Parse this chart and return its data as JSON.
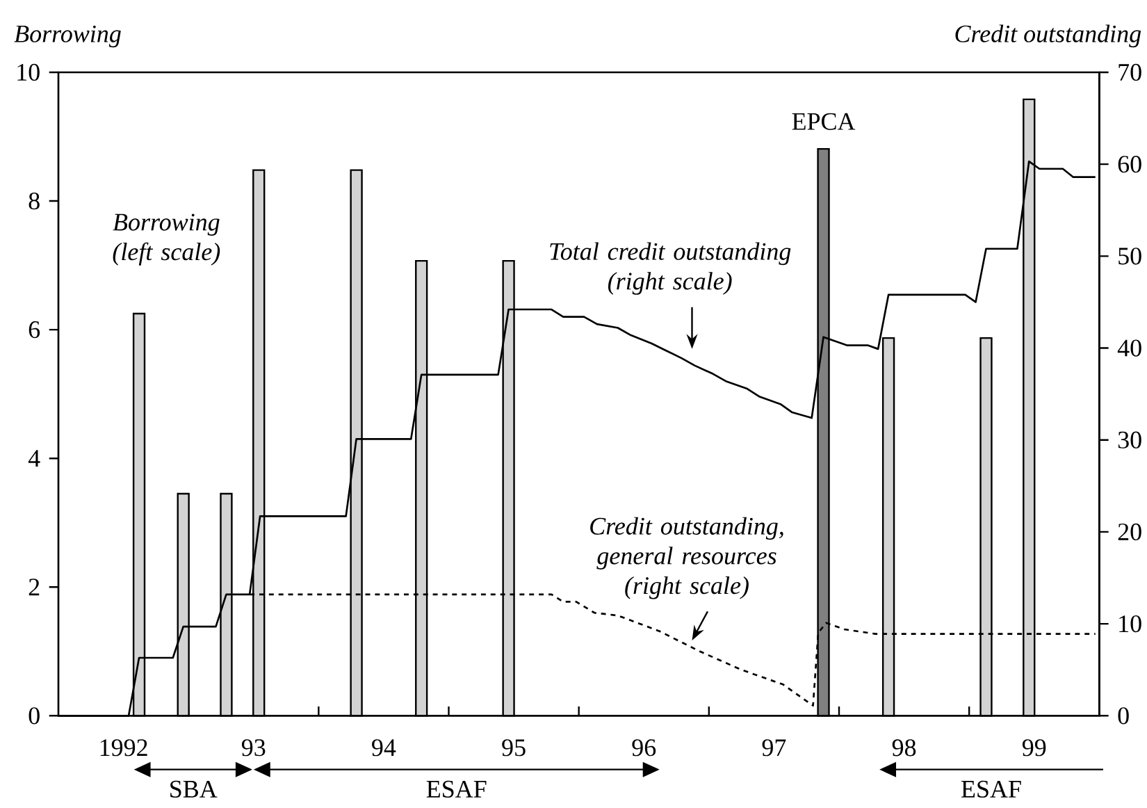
{
  "chart_data": {
    "type": "bar",
    "ylabel": "Borrowing",
    "y2label": "Credit outstanding",
    "xlim": [
      1991.5,
      1999.5
    ],
    "xticks": [
      {
        "value": 1992,
        "label": "1992"
      },
      {
        "value": 1993,
        "label": "93"
      },
      {
        "value": 1994,
        "label": "94"
      },
      {
        "value": 1995,
        "label": "95"
      },
      {
        "value": 1996,
        "label": "96"
      },
      {
        "value": 1997,
        "label": "97"
      },
      {
        "value": 1998,
        "label": "98"
      },
      {
        "value": 1999,
        "label": "99"
      },
      {
        "value": 1992.5,
        "label": null
      },
      {
        "value": 1993.5,
        "label": null
      },
      {
        "value": 1994.5,
        "label": null
      },
      {
        "value": 1995.5,
        "label": null
      },
      {
        "value": 1996.5,
        "label": null
      },
      {
        "value": 1997.5,
        "label": null
      },
      {
        "value": 1998.5,
        "label": null
      }
    ],
    "ylim": [
      0,
      10
    ],
    "yticks": [
      0,
      2,
      4,
      6,
      8,
      10
    ],
    "y2lim": [
      0,
      70
    ],
    "y2ticks": [
      0,
      10,
      20,
      30,
      40,
      50,
      60,
      70
    ],
    "series": [
      {
        "name": "Borrowing (left scale)",
        "x": [
          1992.12,
          1992.46,
          1992.79,
          1993.04,
          1993.79,
          1994.29,
          1994.96,
          1997.38,
          1997.88,
          1998.63,
          1998.96
        ],
        "values": [
          6.25,
          3.45,
          3.45,
          8.48,
          8.48,
          7.07,
          7.07,
          8.81,
          5.87,
          5.87,
          9.58
        ],
        "colors": [
          "#d3d3d3",
          "#d3d3d3",
          "#d3d3d3",
          "#d3d3d3",
          "#d3d3d3",
          "#d3d3d3",
          "#d3d3d3",
          "#808080",
          "#d3d3d3",
          "#d3d3d3",
          "#d3d3d3"
        ]
      },
      {
        "name": "Total credit outstanding (right scale)",
        "type": "line",
        "axis": "y2",
        "color": "#000000",
        "line_style": "solid",
        "x": [
          1991.5,
          1992.04,
          1992.12,
          1992.38,
          1992.46,
          1992.71,
          1992.79,
          1992.97,
          1993.05,
          1993.71,
          1993.79,
          1994.21,
          1994.29,
          1994.88,
          1994.96,
          1995.29,
          1995.38,
          1995.54,
          1995.64,
          1995.8,
          1995.9,
          1996.06,
          1996.16,
          1996.29,
          1996.39,
          1996.53,
          1996.63,
          1996.79,
          1996.89,
          1997.05,
          1997.14,
          1997.29,
          1997.38,
          1997.56,
          1997.72,
          1997.8,
          1997.88,
          1998.47,
          1998.55,
          1998.63,
          1998.87,
          1998.96,
          1999.04,
          1999.22,
          1999.3,
          1999.47
        ],
        "values": [
          0,
          0,
          6.3,
          6.3,
          9.7,
          9.7,
          13.2,
          13.2,
          21.7,
          21.7,
          30.1,
          30.1,
          37.1,
          37.1,
          44.2,
          44.2,
          43.4,
          43.4,
          42.6,
          42.2,
          41.4,
          40.5,
          39.8,
          38.9,
          38.1,
          37.2,
          36.4,
          35.6,
          34.7,
          33.9,
          33.0,
          32.4,
          41.2,
          40.3,
          40.3,
          39.9,
          45.8,
          45.8,
          45.0,
          50.8,
          50.8,
          60.3,
          59.5,
          59.5,
          58.6,
          58.6
        ]
      },
      {
        "name": "Credit outstanding, general resources (right scale)",
        "type": "line",
        "axis": "y2",
        "color": "#000000",
        "line_style": "dashed",
        "x": [
          1992.97,
          1995.29,
          1995.38,
          1995.48,
          1995.62,
          1995.8,
          1996.12,
          1996.43,
          1996.75,
          1997.07,
          1997.3,
          1997.34,
          1997.4,
          1997.54,
          1997.78,
          1999.47
        ],
        "values": [
          13.2,
          13.2,
          12.4,
          12.4,
          11.2,
          10.9,
          9.2,
          7.0,
          5.0,
          3.4,
          1.1,
          9.0,
          10.1,
          9.4,
          8.9,
          8.9
        ]
      }
    ],
    "annotations": [
      {
        "text": "EPCA",
        "x": 1997.38,
        "y": 8.81
      },
      "SBA",
      "ESAF",
      "ESAF"
    ]
  }
}
